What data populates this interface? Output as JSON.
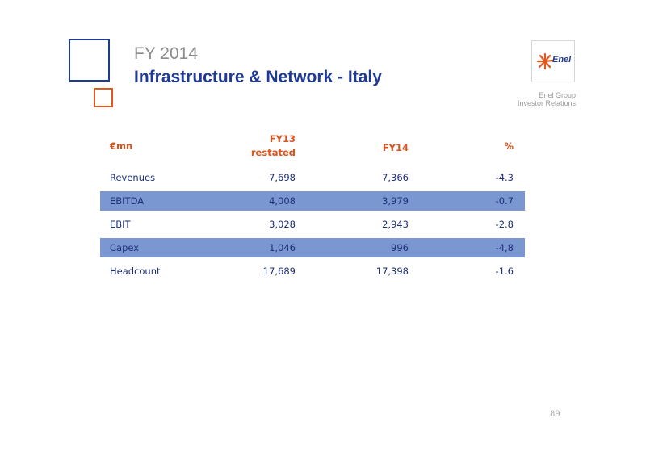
{
  "header": {
    "supertitle": "FY 2014",
    "title": "Infrastructure & Network - Italy",
    "logo_text": "Enel",
    "group_line1": "Enel Group",
    "group_line2": "Investor Relations"
  },
  "colors": {
    "title_blue": "#1f3a93",
    "accent_orange": "#e05a1f",
    "row_shade": "#7b97d1"
  },
  "table": {
    "columns": {
      "unit": "€mn",
      "fy13_line1": "FY13",
      "fy13_line2": "restated",
      "fy14": "FY14",
      "pct": "%"
    },
    "rows": [
      {
        "label": "Revenues",
        "fy13": "7,698",
        "fy14": "7,366",
        "pct": "-4.3"
      },
      {
        "label": "EBITDA",
        "fy13": "4,008",
        "fy14": "3,979",
        "pct": "-0.7"
      },
      {
        "label": "EBIT",
        "fy13": "3,028",
        "fy14": "2,943",
        "pct": "-2.8"
      },
      {
        "label": "Capex",
        "fy13": "1,046",
        "fy14": "996",
        "pct": "-4,8"
      },
      {
        "label": "Headcount",
        "fy13": "17,689",
        "fy14": "17,398",
        "pct": "-1.6"
      }
    ]
  },
  "footer": {
    "page_number": "89"
  }
}
